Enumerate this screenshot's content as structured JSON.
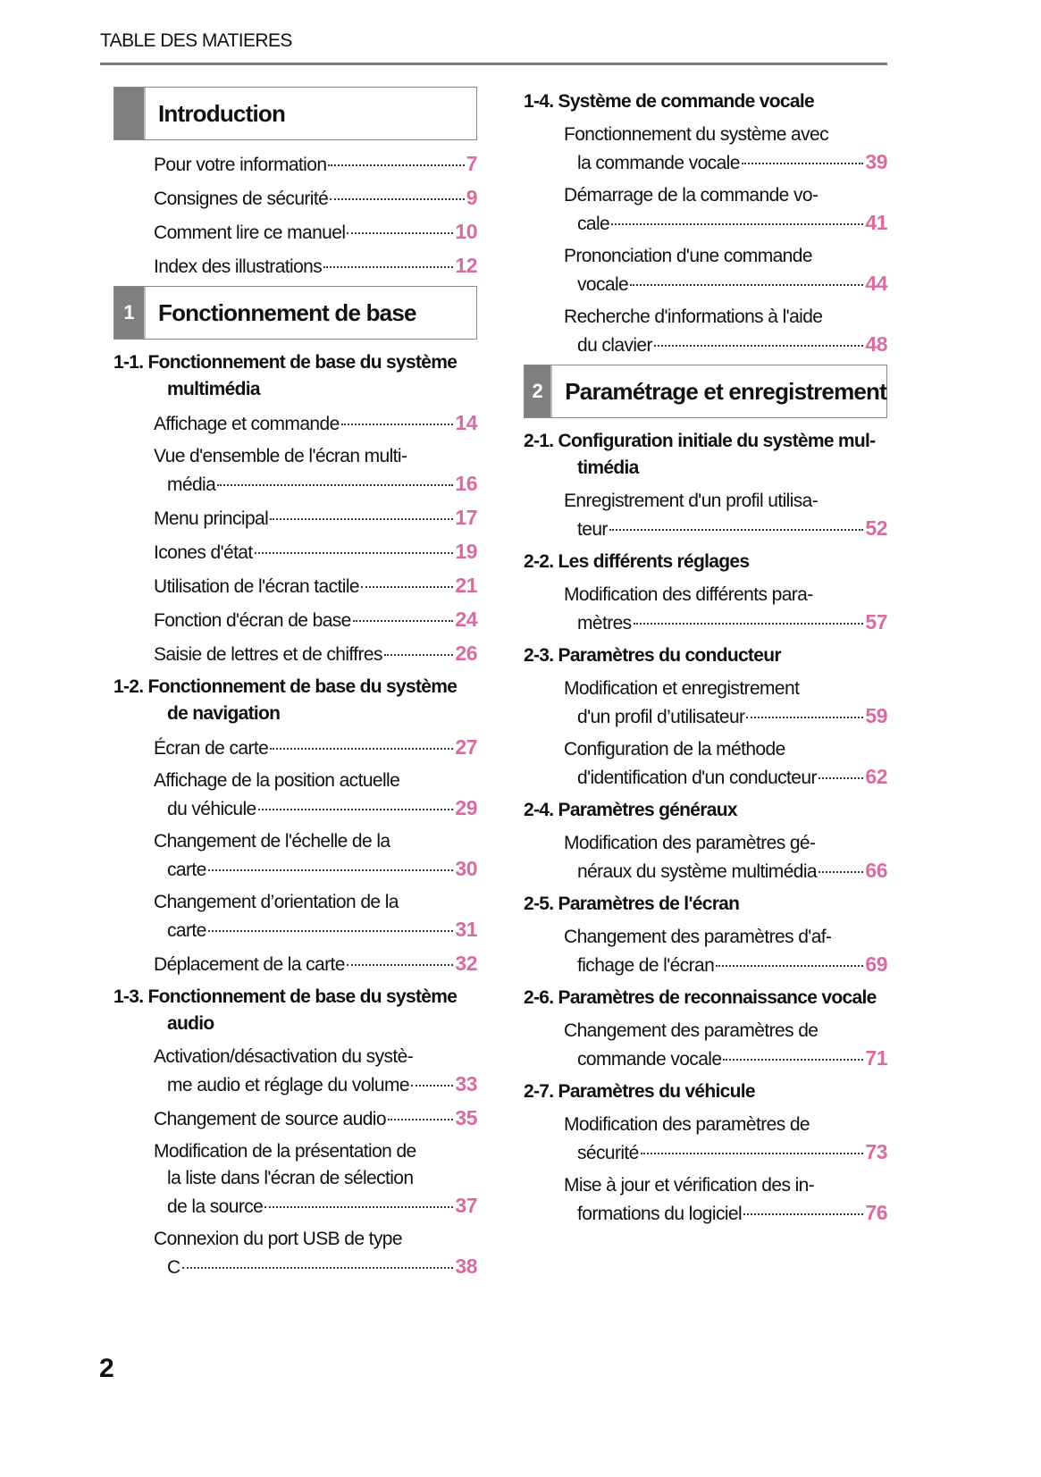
{
  "header": {
    "title": "TABLE DES MATIERES"
  },
  "page_number": "2",
  "colors": {
    "page_link": "#db6aa0",
    "box_tab": "#7f7f7f",
    "rule": "#7a7a7a"
  },
  "columns": [
    {
      "items": [
        {
          "type": "box",
          "num": "",
          "title": "Introduction"
        },
        {
          "type": "entry",
          "lines": [
            "Pour votre information"
          ],
          "page": "7"
        },
        {
          "type": "entry",
          "lines": [
            "Consignes de sécurité"
          ],
          "page": "9"
        },
        {
          "type": "entry",
          "lines": [
            "Comment lire ce manuel"
          ],
          "page": "10"
        },
        {
          "type": "entry",
          "lines": [
            "Index des illustrations"
          ],
          "page": "12"
        },
        {
          "type": "box",
          "num": "1",
          "title": "Fonctionnement de base"
        },
        {
          "type": "group",
          "lines": [
            "1-1. Fonctionnement de base du système",
            "multimédia"
          ]
        },
        {
          "type": "entry",
          "lines": [
            "Affichage et commande"
          ],
          "page": "14"
        },
        {
          "type": "entry",
          "lines": [
            "Vue d'ensemble de l'écran multi-",
            "média"
          ],
          "page": "16"
        },
        {
          "type": "entry",
          "lines": [
            "Menu principal"
          ],
          "page": "17"
        },
        {
          "type": "entry",
          "lines": [
            "Icones d'état"
          ],
          "page": "19"
        },
        {
          "type": "entry",
          "lines": [
            "Utilisation de l'écran tactile"
          ],
          "page": "21"
        },
        {
          "type": "entry",
          "lines": [
            "Fonction d'écran de base"
          ],
          "page": "24"
        },
        {
          "type": "entry",
          "lines": [
            "Saisie de lettres et de chiffres"
          ],
          "page": "26"
        },
        {
          "type": "group",
          "lines": [
            "1-2. Fonctionnement de base du système",
            "de navigation"
          ]
        },
        {
          "type": "entry",
          "lines": [
            "Écran de carte"
          ],
          "page": "27"
        },
        {
          "type": "entry",
          "lines": [
            "Affichage de la position actuelle",
            "du véhicule"
          ],
          "page": "29"
        },
        {
          "type": "entry",
          "lines": [
            "Changement de l'échelle de la",
            "carte"
          ],
          "page": "30"
        },
        {
          "type": "entry",
          "lines": [
            "Changement d’orientation de la",
            "carte"
          ],
          "page": "31"
        },
        {
          "type": "entry",
          "lines": [
            "Déplacement de la carte"
          ],
          "page": "32"
        },
        {
          "type": "group",
          "lines": [
            "1-3. Fonctionnement de base du système",
            "audio"
          ]
        },
        {
          "type": "entry",
          "lines": [
            "Activation/désactivation du systè-",
            "me audio et réglage du volume"
          ],
          "page": "33"
        },
        {
          "type": "entry",
          "lines": [
            "Changement de source audio"
          ],
          "page": "35"
        },
        {
          "type": "entry",
          "lines": [
            "Modification de la présentation de",
            "la liste dans l'écran de sélection",
            "de la source"
          ],
          "page": "37"
        },
        {
          "type": "entry",
          "lines": [
            "Connexion du port USB de type",
            "C"
          ],
          "page": "38"
        }
      ]
    },
    {
      "items": [
        {
          "type": "group",
          "lines": [
            "1-4. Système de commande vocale"
          ]
        },
        {
          "type": "entry",
          "lines": [
            "Fonctionnement du système avec",
            "la commande vocale"
          ],
          "page": "39"
        },
        {
          "type": "entry",
          "lines": [
            "Démarrage de la commande vo-",
            "cale"
          ],
          "page": "41"
        },
        {
          "type": "entry",
          "lines": [
            "Prononciation d'une commande",
            "vocale"
          ],
          "page": "44"
        },
        {
          "type": "entry",
          "lines": [
            "Recherche d'informations à l'aide",
            "du clavier"
          ],
          "page": "48"
        },
        {
          "type": "box",
          "num": "2",
          "title": "Paramétrage et enregistrement"
        },
        {
          "type": "group",
          "lines": [
            "2-1. Configuration initiale du système mul-",
            "timédia"
          ]
        },
        {
          "type": "entry",
          "lines": [
            "Enregistrement d'un profil utilisa-",
            "teur"
          ],
          "page": "52"
        },
        {
          "type": "group",
          "lines": [
            "2-2. Les différents réglages"
          ]
        },
        {
          "type": "entry",
          "lines": [
            "Modification des différents para-",
            "mètres"
          ],
          "page": "57"
        },
        {
          "type": "group",
          "lines": [
            "2-3. Paramètres du conducteur"
          ]
        },
        {
          "type": "entry",
          "lines": [
            "Modification et enregistrement",
            "d'un profil d’utilisateur"
          ],
          "page": "59"
        },
        {
          "type": "entry",
          "lines": [
            "Configuration de la méthode",
            "d'identification d'un conducteur"
          ],
          "page": "62"
        },
        {
          "type": "group",
          "lines": [
            "2-4. Paramètres généraux"
          ]
        },
        {
          "type": "entry",
          "lines": [
            "Modification des paramètres gé-",
            "néraux du système multimédia"
          ],
          "page": "66"
        },
        {
          "type": "group",
          "lines": [
            "2-5. Paramètres de l'écran"
          ]
        },
        {
          "type": "entry",
          "lines": [
            "Changement des paramètres d'af-",
            "fichage de l'écran"
          ],
          "page": "69"
        },
        {
          "type": "group",
          "lines": [
            "2-6. Paramètres de reconnaissance vocale"
          ]
        },
        {
          "type": "entry",
          "lines": [
            "Changement des paramètres de",
            "commande vocale"
          ],
          "page": "71"
        },
        {
          "type": "group",
          "lines": [
            "2-7. Paramètres du véhicule"
          ]
        },
        {
          "type": "entry",
          "lines": [
            "Modification des paramètres de",
            "sécurité"
          ],
          "page": "73"
        },
        {
          "type": "entry",
          "lines": [
            "Mise à jour et vérification des in-",
            "formations du logiciel"
          ],
          "page": "76"
        }
      ]
    }
  ]
}
